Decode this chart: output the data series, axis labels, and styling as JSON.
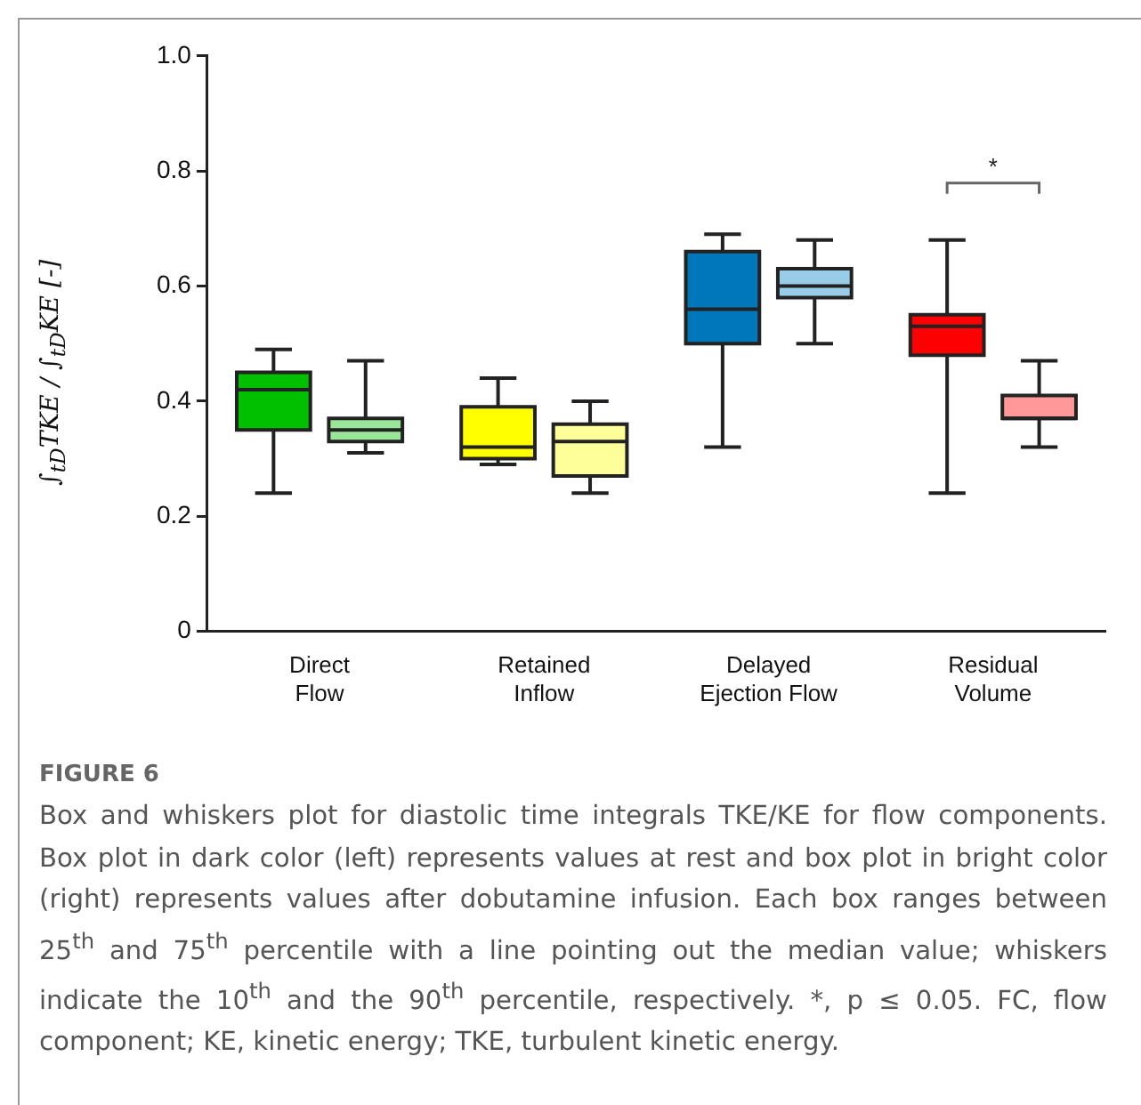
{
  "chart_data": {
    "type": "box",
    "ylabel": "∫$_{tD}$TKE / ∫$_{tD}$KE [-]",
    "categories": [
      "Direct Flow",
      "Retained Inflow",
      "Delayed Ejection Flow",
      "Residual Volume"
    ],
    "series": [
      {
        "colors": [
          "#00c000",
          "#ffff00",
          "#0077bb",
          "#ff0000"
        ],
        "boxes": [
          {
            "low": 0.24,
            "q1": 0.35,
            "median": 0.42,
            "q3": 0.45,
            "high": 0.49
          },
          {
            "low": 0.29,
            "q1": 0.3,
            "median": 0.32,
            "q3": 0.39,
            "high": 0.44
          },
          {
            "low": 0.32,
            "q1": 0.5,
            "median": 0.56,
            "q3": 0.66,
            "high": 0.69
          },
          {
            "low": 0.24,
            "q1": 0.48,
            "median": 0.53,
            "q3": 0.55,
            "high": 0.68
          }
        ]
      },
      {
        "colors": [
          "#99e699",
          "#ffff99",
          "#99cce6",
          "#ff9999"
        ],
        "boxes": [
          {
            "low": 0.31,
            "q1": 0.33,
            "median": 0.35,
            "q3": 0.37,
            "high": 0.47
          },
          {
            "low": 0.24,
            "q1": 0.27,
            "median": 0.33,
            "q3": 0.36,
            "high": 0.4
          },
          {
            "low": 0.5,
            "q1": 0.58,
            "median": 0.6,
            "q3": 0.63,
            "high": 0.68
          },
          {
            "low": 0.32,
            "q1": 0.37,
            "median": 0.37,
            "q3": 0.41,
            "high": 0.47
          }
        ]
      }
    ],
    "ylim": [
      0,
      1
    ],
    "yticks": [
      0,
      0.2,
      0.4,
      0.6,
      0.8,
      {
        "value": 1,
        "label": "1.0"
      }
    ],
    "grid": false,
    "legend": false,
    "annotations": [
      "*",
      "FIGURE 6",
      "Box and whiskers plot for diastolic time integrals TKE/KE for flow components. Box plot in dark color (left) represents values at rest and box plot in bright color (right) represents values after dobutamine infusion. Each box ranges between 25$^{th}$ and 75$^{th}$ percentile with a line pointing out the median value; whiskers indicate the 10$^{th}$ and the 90$^{th}$ percentile, respectively. *, p ≤ 0.05. FC, flow component; KE, kinetic energy; TKE, turbulent kinetic energy."
    ]
  }
}
